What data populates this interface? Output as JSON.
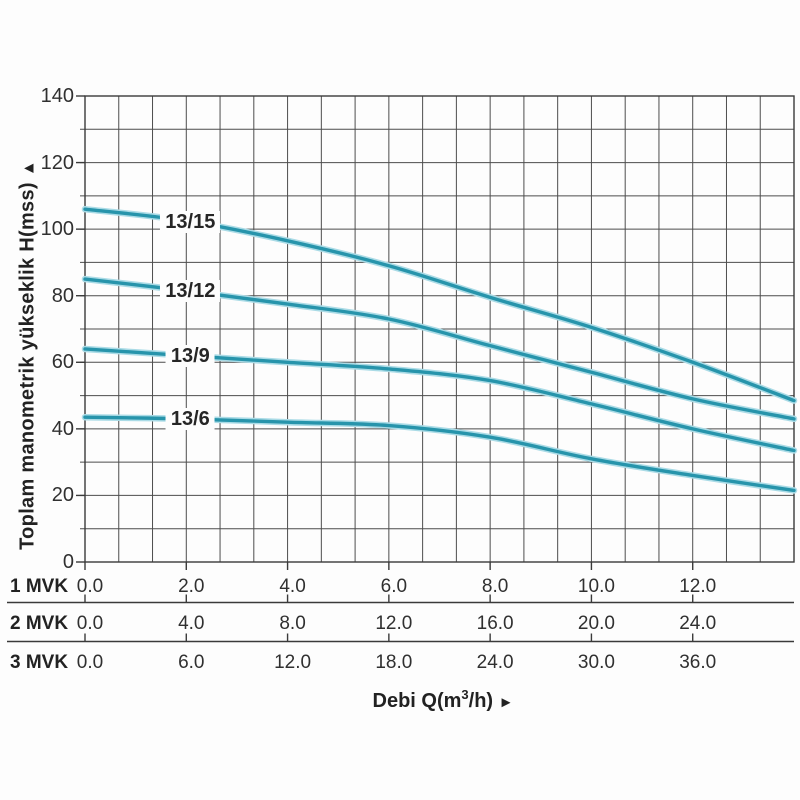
{
  "colors": {
    "curve": "#2794ab",
    "curve_halo": "#aadbe6",
    "grid": "#4d4d4d",
    "axis": "#3a3a3a",
    "text": "#2a2a2a",
    "background": "#fdfdfd"
  },
  "y_axis_title": "Toplam manometrik yükseklik H(mss)",
  "y_axis_arrow": "▲",
  "x_axis_title_prefix": "Debi Q(m",
  "x_axis_title_sup": "3",
  "x_axis_title_suffix": "/h)",
  "x_axis_arrow": "►",
  "chart_data": {
    "type": "line",
    "title": "",
    "xlabel": "Debi Q(m3/h)",
    "ylabel": "Toplam manometrik yükseklik H(mss)",
    "xlim": [
      0,
      14
    ],
    "ylim": [
      0,
      140
    ],
    "grid": true,
    "x_minor_divisions": 21,
    "y_minor_step": 10,
    "y_tick_labels": [
      "0",
      "20",
      "40",
      "60",
      "80",
      "100",
      "120",
      "140"
    ],
    "y_tick_values": [
      0,
      20,
      40,
      60,
      80,
      100,
      120,
      140
    ],
    "x_label_values_1mvk": [
      0,
      2,
      4,
      6,
      8,
      10,
      12
    ],
    "x_scale_rows": [
      {
        "label": "1 MVK",
        "tick_labels": [
          "0.0",
          "2.0",
          "4.0",
          "6.0",
          "8.0",
          "10.0",
          "12.0"
        ]
      },
      {
        "label": "2 MVK",
        "tick_labels": [
          "0.0",
          "4.0",
          "8.0",
          "12.0",
          "16.0",
          "20.0",
          "24.0"
        ]
      },
      {
        "label": "3 MVK",
        "tick_labels": [
          "0.0",
          "6.0",
          "12.0",
          "18.0",
          "24.0",
          "30.0",
          "36.0"
        ]
      }
    ],
    "x": [
      0,
      2,
      4,
      6,
      8,
      10,
      12,
      14
    ],
    "series": [
      {
        "name": "13/15",
        "values": [
          106,
          102.5,
          96.5,
          89,
          79.5,
          70.5,
          60,
          48.5
        ]
      },
      {
        "name": "13/12",
        "values": [
          85,
          81.5,
          77.5,
          73,
          65,
          57,
          49,
          43
        ]
      },
      {
        "name": "13/9",
        "values": [
          64,
          62,
          60,
          58,
          54.5,
          47.5,
          40,
          33.5
        ]
      },
      {
        "name": "13/6",
        "values": [
          43.5,
          43,
          42,
          41,
          37.5,
          31,
          26,
          21.5
        ]
      }
    ],
    "series_label_anchor_x": 2.08,
    "legend_position": "on-curve"
  }
}
